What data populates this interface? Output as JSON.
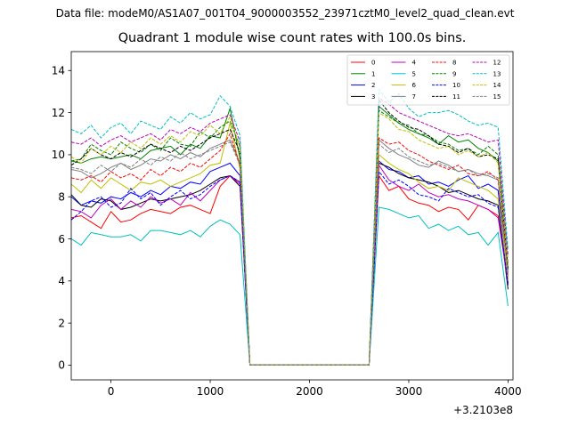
{
  "suptitle": "Data file: modeM0/AS1A07_001T04_9000003552_23971cztM0_level2_quad_clean.evt",
  "chart_data": {
    "type": "line",
    "title": "Quadrant 1 module wise count rates with 100.0s bins.",
    "xlabel": "",
    "ylabel": "",
    "x_offset_label": "+3.2103e8",
    "xlim": [
      -400,
      4050
    ],
    "ylim": [
      -0.7,
      14.9
    ],
    "xticks": [
      0,
      1000,
      2000,
      3000,
      4000
    ],
    "xtick_labels": [
      "0",
      "1000",
      "2000",
      "3000",
      "4000"
    ],
    "yticks": [
      0,
      2,
      4,
      6,
      8,
      10,
      12,
      14
    ],
    "ytick_labels": [
      "0",
      "2",
      "4",
      "6",
      "8",
      "10",
      "12",
      "14"
    ],
    "legend_position": "top-right",
    "x": [
      -400,
      -300,
      -200,
      -100,
      0,
      100,
      200,
      300,
      400,
      500,
      600,
      700,
      800,
      900,
      1000,
      1100,
      1200,
      1300,
      1400,
      1500,
      1600,
      1700,
      1800,
      1900,
      2000,
      2100,
      2200,
      2300,
      2400,
      2500,
      2600,
      2700,
      2800,
      2900,
      3000,
      3100,
      3200,
      3300,
      3400,
      3500,
      3600,
      3700,
      3800,
      3900,
      4000
    ],
    "series": [
      {
        "name": "0",
        "color": "#ff0000",
        "dash": "solid",
        "values": [
          7.0,
          7.1,
          6.8,
          6.5,
          7.3,
          6.8,
          6.9,
          7.2,
          7.4,
          7.3,
          7.2,
          7.5,
          7.6,
          7.4,
          7.2,
          8.5,
          9.0,
          8.7,
          0,
          0,
          0,
          0,
          0,
          0,
          0,
          0,
          0,
          0,
          0,
          0,
          0,
          9.0,
          8.3,
          8.5,
          7.9,
          7.7,
          7.6,
          7.3,
          7.5,
          7.4,
          6.9,
          7.6,
          7.4,
          7.1,
          4.2
        ]
      },
      {
        "name": "1",
        "color": "#008000",
        "dash": "solid",
        "values": [
          9.7,
          9.6,
          9.8,
          9.9,
          9.8,
          9.9,
          10.0,
          9.8,
          10.2,
          10.3,
          10.4,
          10.0,
          10.5,
          10.3,
          10.9,
          10.8,
          12.2,
          9.8,
          0,
          0,
          0,
          0,
          0,
          0,
          0,
          0,
          0,
          0,
          0,
          0,
          0,
          12.3,
          11.9,
          11.5,
          11.2,
          11.0,
          10.8,
          10.5,
          10.9,
          10.6,
          10.7,
          10.3,
          10.1,
          9.7,
          4.5
        ]
      },
      {
        "name": "2",
        "color": "#0000ff",
        "dash": "solid",
        "values": [
          8.0,
          7.6,
          7.8,
          7.7,
          8.0,
          7.9,
          8.2,
          8.0,
          8.3,
          8.1,
          8.5,
          8.4,
          8.7,
          8.6,
          9.2,
          9.4,
          9.6,
          9.0,
          0,
          0,
          0,
          0,
          0,
          0,
          0,
          0,
          0,
          0,
          0,
          0,
          0,
          9.7,
          9.3,
          9.2,
          8.9,
          9.0,
          8.6,
          8.7,
          8.5,
          8.8,
          9.0,
          8.4,
          8.6,
          8.3,
          3.8
        ]
      },
      {
        "name": "3",
        "color": "#000000",
        "dash": "solid",
        "values": [
          8.1,
          7.6,
          7.5,
          7.9,
          7.8,
          7.4,
          7.5,
          7.7,
          7.9,
          7.8,
          7.9,
          8.0,
          8.1,
          8.3,
          8.6,
          8.9,
          9.0,
          8.5,
          0,
          0,
          0,
          0,
          0,
          0,
          0,
          0,
          0,
          0,
          0,
          0,
          0,
          9.6,
          9.4,
          9.1,
          8.9,
          8.8,
          8.7,
          8.5,
          8.2,
          8.3,
          8.1,
          7.9,
          7.8,
          7.6,
          3.6
        ]
      },
      {
        "name": "4",
        "color": "#bf00bf",
        "dash": "solid",
        "values": [
          7.4,
          7.3,
          7.0,
          7.6,
          7.9,
          7.4,
          7.8,
          7.5,
          8.0,
          7.7,
          7.9,
          7.6,
          8.2,
          7.8,
          8.3,
          8.8,
          9.0,
          8.6,
          0,
          0,
          0,
          0,
          0,
          0,
          0,
          0,
          0,
          0,
          0,
          0,
          0,
          9.5,
          8.8,
          8.5,
          8.3,
          8.6,
          8.2,
          8.0,
          8.1,
          7.9,
          7.8,
          7.6,
          7.4,
          7.0,
          3.9
        ]
      },
      {
        "name": "5",
        "color": "#00bfbf",
        "dash": "solid",
        "values": [
          6.0,
          5.7,
          6.3,
          6.2,
          6.1,
          6.1,
          6.2,
          5.9,
          6.4,
          6.4,
          6.3,
          6.2,
          6.4,
          6.1,
          6.6,
          6.9,
          6.7,
          6.2,
          0,
          0,
          0,
          0,
          0,
          0,
          0,
          0,
          0,
          0,
          0,
          0,
          0,
          7.5,
          7.4,
          7.2,
          7.0,
          7.1,
          6.5,
          6.7,
          6.4,
          6.6,
          6.2,
          6.3,
          5.7,
          6.3,
          2.8
        ]
      },
      {
        "name": "6",
        "color": "#bfbf00",
        "dash": "solid",
        "values": [
          8.6,
          8.2,
          8.8,
          8.4,
          8.9,
          8.6,
          8.3,
          8.7,
          8.6,
          8.8,
          8.5,
          8.7,
          8.9,
          9.1,
          9.5,
          9.6,
          11.5,
          9.3,
          0,
          0,
          0,
          0,
          0,
          0,
          0,
          0,
          0,
          0,
          0,
          0,
          0,
          10.0,
          9.6,
          9.3,
          9.1,
          8.7,
          8.4,
          8.5,
          8.3,
          8.9,
          8.7,
          8.5,
          8.3,
          7.9,
          4.1
        ]
      },
      {
        "name": "7",
        "color": "#808080",
        "dash": "solid",
        "values": [
          9.3,
          9.2,
          8.9,
          9.1,
          9.4,
          9.6,
          9.3,
          9.5,
          9.8,
          9.7,
          10.0,
          9.8,
          10.1,
          9.9,
          10.3,
          10.5,
          10.7,
          9.6,
          0,
          0,
          0,
          0,
          0,
          0,
          0,
          0,
          0,
          0,
          0,
          0,
          0,
          10.7,
          10.3,
          10.0,
          9.8,
          9.5,
          9.4,
          9.7,
          9.5,
          9.2,
          9.3,
          9.1,
          9.0,
          8.8,
          4.3
        ]
      },
      {
        "name": "8",
        "color": "#ff0000",
        "dash": "dashed",
        "values": [
          8.9,
          8.8,
          9.0,
          8.7,
          9.2,
          8.9,
          9.1,
          8.8,
          9.3,
          9.0,
          9.4,
          9.2,
          9.6,
          9.4,
          9.8,
          10.2,
          11.0,
          9.5,
          0,
          0,
          0,
          0,
          0,
          0,
          0,
          0,
          0,
          0,
          0,
          0,
          0,
          10.8,
          10.5,
          10.6,
          10.2,
          10.0,
          9.7,
          9.5,
          9.3,
          9.5,
          9.1,
          9.0,
          9.2,
          8.8,
          4.6
        ]
      },
      {
        "name": "9",
        "color": "#008000",
        "dash": "dashed",
        "values": [
          9.7,
          9.8,
          10.5,
          10.2,
          10.0,
          10.6,
          10.3,
          10.1,
          10.5,
          10.2,
          10.8,
          10.5,
          10.4,
          11.1,
          10.8,
          11.3,
          11.6,
          10.4,
          0,
          0,
          0,
          0,
          0,
          0,
          0,
          0,
          0,
          0,
          0,
          0,
          0,
          12.1,
          11.8,
          11.5,
          11.4,
          11.0,
          10.9,
          10.6,
          10.5,
          10.2,
          10.3,
          10.0,
          10.4,
          10.0,
          4.9
        ]
      },
      {
        "name": "10",
        "color": "#0000ff",
        "dash": "dashed",
        "values": [
          6.9,
          7.3,
          7.8,
          8.0,
          7.5,
          7.7,
          8.4,
          7.9,
          8.2,
          7.6,
          8.0,
          8.3,
          7.9,
          8.1,
          8.5,
          8.8,
          9.0,
          8.7,
          0,
          0,
          0,
          0,
          0,
          0,
          0,
          0,
          0,
          0,
          0,
          0,
          0,
          9.2,
          8.6,
          8.8,
          8.5,
          8.1,
          8.0,
          7.8,
          8.4,
          8.2,
          8.0,
          8.1,
          7.7,
          7.5,
          3.9
        ]
      },
      {
        "name": "11",
        "color": "#000000",
        "dash": "dashed",
        "values": [
          9.5,
          9.8,
          10.3,
          10.0,
          9.8,
          10.1,
          9.9,
          10.2,
          10.5,
          10.3,
          10.1,
          10.4,
          10.2,
          10.5,
          10.8,
          11.0,
          11.2,
          10.1,
          0,
          0,
          0,
          0,
          0,
          0,
          0,
          0,
          0,
          0,
          0,
          0,
          0,
          12.6,
          12.0,
          11.6,
          11.3,
          11.2,
          10.9,
          10.5,
          10.4,
          10.1,
          10.3,
          9.9,
          10.0,
          9.8,
          4.6
        ]
      },
      {
        "name": "12",
        "color": "#bf00bf",
        "dash": "dashed",
        "values": [
          10.6,
          10.5,
          10.8,
          10.4,
          10.7,
          10.9,
          10.6,
          10.8,
          11.0,
          10.7,
          11.2,
          11.0,
          11.3,
          11.1,
          11.5,
          11.7,
          11.9,
          10.6,
          0,
          0,
          0,
          0,
          0,
          0,
          0,
          0,
          0,
          0,
          0,
          0,
          0,
          12.7,
          12.4,
          12.0,
          11.8,
          11.6,
          11.4,
          11.2,
          11.0,
          10.9,
          11.0,
          10.8,
          10.6,
          10.7,
          5.2
        ]
      },
      {
        "name": "13",
        "color": "#00bfbf",
        "dash": "dashed",
        "values": [
          11.2,
          11.0,
          11.4,
          10.8,
          11.3,
          11.5,
          11.0,
          11.6,
          11.4,
          11.2,
          11.8,
          11.5,
          12.0,
          11.7,
          11.9,
          12.8,
          12.3,
          10.9,
          0,
          0,
          0,
          0,
          0,
          0,
          0,
          0,
          0,
          0,
          0,
          0,
          0,
          13.1,
          12.5,
          12.9,
          12.2,
          11.8,
          12.0,
          12.0,
          12.1,
          11.9,
          11.6,
          11.4,
          11.5,
          11.3,
          5.5
        ]
      },
      {
        "name": "14",
        "color": "#bfbf00",
        "dash": "dashed",
        "values": [
          9.9,
          9.6,
          10.3,
          10.0,
          10.4,
          10.1,
          10.6,
          10.3,
          10.8,
          10.5,
          10.9,
          10.6,
          11.1,
          10.9,
          11.4,
          11.0,
          11.8,
          10.3,
          0,
          0,
          0,
          0,
          0,
          0,
          0,
          0,
          0,
          0,
          0,
          0,
          0,
          12.0,
          11.7,
          11.2,
          11.1,
          10.7,
          10.5,
          10.3,
          10.4,
          10.0,
          10.2,
          9.9,
          10.1,
          9.6,
          4.8
        ]
      },
      {
        "name": "15",
        "color": "#808080",
        "dash": "dashed",
        "values": [
          9.4,
          9.3,
          9.1,
          9.5,
          9.2,
          9.6,
          9.4,
          9.8,
          9.5,
          9.9,
          9.7,
          10.1,
          9.8,
          10.0,
          10.2,
          10.4,
          10.6,
          9.5,
          0,
          0,
          0,
          0,
          0,
          0,
          0,
          0,
          0,
          0,
          0,
          0,
          0,
          10.5,
          10.1,
          10.3,
          9.9,
          9.7,
          9.5,
          9.6,
          9.4,
          9.2,
          9.3,
          9.0,
          9.1,
          8.9,
          4.4
        ]
      }
    ]
  }
}
